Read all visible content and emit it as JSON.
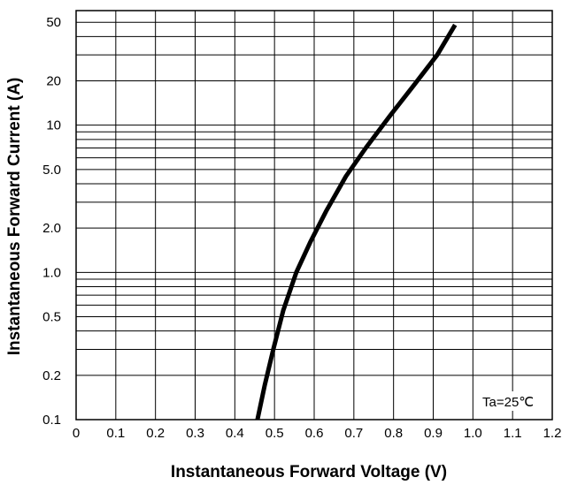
{
  "chart_data": {
    "type": "line",
    "title": "",
    "xlabel": "Instantaneous Forward Voltage (V)",
    "ylabel": "Instantaneous Forward Current (A)",
    "xlim": [
      0,
      1.2
    ],
    "ylim": [
      0.1,
      60
    ],
    "xscale": "linear",
    "yscale": "log",
    "grid": true,
    "legend": "none",
    "x_ticks": [
      "0",
      "0.1",
      "0.2",
      "0.3",
      "0.4",
      "0.5",
      "0.6",
      "0.7",
      "0.8",
      "0.9",
      "1.0",
      "1.1",
      "1.2"
    ],
    "y_ticks": [
      {
        "value": 0.1,
        "label": "0.1"
      },
      {
        "value": 0.2,
        "label": "0.2"
      },
      {
        "value": 0.5,
        "label": "0.5"
      },
      {
        "value": 1,
        "label": "1.0"
      },
      {
        "value": 2,
        "label": "2.0"
      },
      {
        "value": 5,
        "label": "5.0"
      },
      {
        "value": 10,
        "label": "10"
      },
      {
        "value": 20,
        "label": "20"
      },
      {
        "value": 50,
        "label": "50"
      }
    ],
    "annotation": "Ta=25℃",
    "series": [
      {
        "color": "#000000",
        "x": [
          0.457,
          0.475,
          0.497,
          0.522,
          0.555,
          0.59,
          0.63,
          0.68,
          0.73,
          0.79,
          0.85,
          0.91,
          0.955
        ],
        "y": [
          0.1,
          0.17,
          0.3,
          0.55,
          1.0,
          1.6,
          2.6,
          4.5,
          7.0,
          11.5,
          18.5,
          30.0,
          48.0
        ]
      }
    ]
  }
}
